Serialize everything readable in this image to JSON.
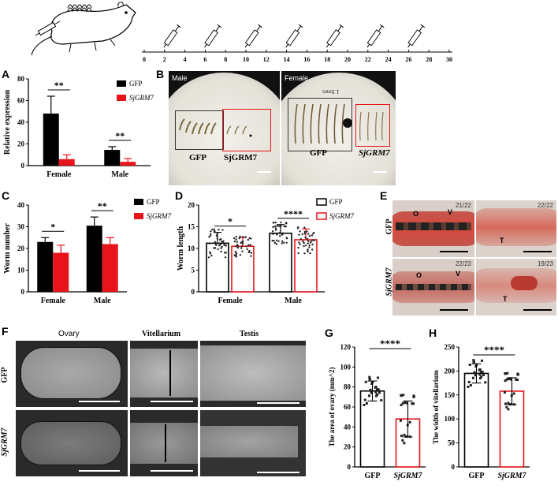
{
  "timeline": {
    "ticks": [
      "0",
      "2",
      "4",
      "6",
      "8",
      "10",
      "12",
      "14",
      "16",
      "18",
      "20",
      "22",
      "24",
      "26",
      "28",
      "30"
    ],
    "injection_days": [
      2,
      6,
      10,
      14,
      18,
      22,
      26
    ]
  },
  "panel_letters": {
    "A": "A",
    "B": "B",
    "C": "C",
    "D": "D",
    "E": "E",
    "F": "F",
    "G": "G",
    "H": "H"
  },
  "legend": {
    "gfp": "GFP",
    "sjgrm7": "SjGRM7"
  },
  "colors": {
    "gfp": "#000000",
    "sjgrm7": "#e8141b",
    "red_box": "#e8141b"
  },
  "panel_B": {
    "male_label": "Male",
    "female_label": "Female",
    "male_gfp": "GFP",
    "male_sj": "SjGRM7",
    "female_gfp": "GFP",
    "female_sj": "SjGRM7",
    "scale_text": "1.5mm"
  },
  "panel_E": {
    "gfp_row": "GFP",
    "sj_row": "SjGRM7",
    "fractions": [
      "21/22",
      "22/22",
      "22/23",
      "19/23"
    ],
    "arrows": {
      "o": "O",
      "v": "V",
      "t": "T"
    }
  },
  "panel_F": {
    "col_ovary": "Ovary",
    "col_vitellarium": "Vitellarium",
    "col_testis": "Testis",
    "row_gfp": "GFP",
    "row_sj": "SjGRM7"
  },
  "chart_data": [
    {
      "id": "A",
      "type": "bar",
      "ylabel": "Relative expression",
      "ylim": [
        0,
        80
      ],
      "yticks": [
        0,
        20,
        40,
        60,
        80
      ],
      "categories": [
        "Female",
        "Male"
      ],
      "series": [
        {
          "name": "GFP",
          "values": [
            48,
            14.5
          ],
          "err": [
            16,
            3
          ]
        },
        {
          "name": "SjGRM7",
          "values": [
            6,
            3.5
          ],
          "err": [
            4,
            3
          ]
        }
      ],
      "sig": [
        "**",
        "**"
      ]
    },
    {
      "id": "C",
      "type": "bar",
      "ylabel": "Worm number",
      "ylim": [
        0,
        40
      ],
      "yticks": [
        0,
        10,
        20,
        30,
        40
      ],
      "categories": [
        "Female",
        "Male"
      ],
      "series": [
        {
          "name": "GFP",
          "values": [
            23,
            30.5
          ],
          "err": [
            2,
            4
          ]
        },
        {
          "name": "SjGRM7",
          "values": [
            18,
            22
          ],
          "err": [
            3.5,
            3
          ]
        }
      ],
      "sig": [
        "*",
        "**"
      ]
    },
    {
      "id": "D",
      "type": "bar",
      "ylabel": "Worm length",
      "ylim": [
        0,
        20
      ],
      "yticks": [
        0,
        5,
        10,
        15,
        20
      ],
      "categories": [
        "Female",
        "Male"
      ],
      "series": [
        {
          "name": "GFP",
          "values": [
            11.2,
            13.5
          ],
          "err": [
            2.5,
            2
          ]
        },
        {
          "name": "SjGRM7",
          "values": [
            10.5,
            12
          ],
          "err": [
            2,
            2.5
          ]
        }
      ],
      "sig": [
        "*",
        "****"
      ]
    },
    {
      "id": "G",
      "type": "bar",
      "ylabel": "The area of ovary (mm^2)",
      "ylim": [
        0,
        120
      ],
      "yticks": [
        0,
        20,
        40,
        60,
        80,
        100,
        120
      ],
      "categories": [
        "GFP",
        "SjGRM7"
      ],
      "series": [
        {
          "name": "values",
          "values": [
            76,
            48
          ],
          "err": [
            10,
            18
          ]
        }
      ],
      "sig": [
        "****"
      ]
    },
    {
      "id": "H",
      "type": "bar",
      "ylabel": "The width of vitellarium",
      "ylim": [
        0,
        250
      ],
      "yticks": [
        0,
        50,
        100,
        150,
        200,
        250
      ],
      "categories": [
        "GFP",
        "SjGRM7"
      ],
      "series": [
        {
          "name": "values",
          "values": [
            195,
            158
          ],
          "err": [
            20,
            28
          ]
        }
      ],
      "sig": [
        "****"
      ]
    }
  ]
}
